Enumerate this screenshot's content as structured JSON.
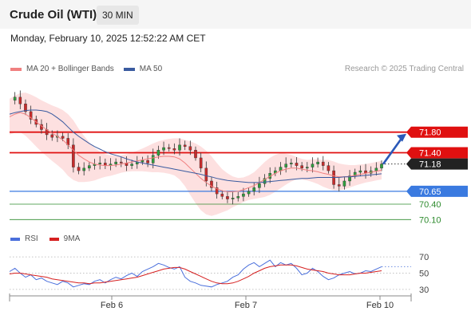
{
  "header": {
    "title": "Crude Oil (WTI)",
    "timeframe": "30 MIN",
    "datetime": "Monday, February 10, 2025 12:52:22 AM CET"
  },
  "legend": {
    "ma20_label": "MA 20 + Bollinger Bands",
    "ma50_label": "MA 50",
    "credit": "Research © 2025 Trading Central",
    "colors": {
      "ma20": "#f08080",
      "ma50": "#3a5ba0",
      "band_fill": "#fde0e0"
    }
  },
  "rsi_legend": {
    "rsi_label": "RSI",
    "ma9_label": "9MA",
    "colors": {
      "rsi": "#4a6fdc",
      "ma9": "#d62020"
    }
  },
  "chart_data": [
    {
      "type": "candlestick",
      "title": "Crude Oil (WTI)",
      "timeframe": "30 MIN",
      "ylim": [
        69.95,
        72.85
      ],
      "x_tick_labels": [
        "Feb 6",
        "Feb 7",
        "Feb 10"
      ],
      "levels": [
        {
          "label": "71.80",
          "value": 71.8,
          "kind": "resistance",
          "color": "#e01010",
          "badge": true
        },
        {
          "label": "71.40",
          "value": 71.4,
          "kind": "resistance",
          "color": "#e01010",
          "badge": true
        },
        {
          "label": "71.18",
          "value": 71.18,
          "kind": "last-price",
          "color": "#222222",
          "badge": true
        },
        {
          "label": "70.65",
          "value": 70.65,
          "kind": "pivot",
          "color": "#3a7ae0",
          "badge": true
        },
        {
          "label": "70.40",
          "value": 70.4,
          "kind": "support",
          "color": "#2e8b2e",
          "badge": false
        },
        {
          "label": "70.10",
          "value": 70.1,
          "kind": "support",
          "color": "#2e8b2e",
          "badge": false
        }
      ],
      "close_path": [
        72.42,
        72.48,
        72.35,
        72.2,
        72.05,
        71.95,
        71.85,
        71.75,
        71.7,
        71.72,
        71.68,
        71.55,
        71.12,
        71.05,
        71.1,
        71.15,
        71.18,
        71.2,
        71.15,
        71.18,
        71.22,
        71.2,
        71.15,
        71.18,
        71.22,
        71.25,
        71.2,
        71.35,
        71.45,
        71.5,
        71.48,
        71.45,
        71.55,
        71.52,
        71.45,
        71.3,
        71.1,
        70.85,
        70.72,
        70.6,
        70.55,
        70.5,
        70.52,
        70.55,
        70.6,
        70.65,
        70.72,
        70.8,
        70.9,
        71.0,
        71.05,
        71.12,
        71.18,
        71.2,
        71.15,
        71.1,
        71.12,
        71.18,
        71.22,
        71.15,
        71.05,
        70.78,
        70.75,
        70.85,
        70.95,
        71.02,
        71.05,
        71.0,
        71.05,
        71.1,
        71.18
      ],
      "ma20": [
        72.1,
        72.15,
        72.18,
        72.15,
        72.08,
        72.0,
        71.92,
        71.85,
        71.78,
        71.72,
        71.65,
        71.55,
        71.45,
        71.35,
        71.28,
        71.22,
        71.18,
        71.16,
        71.15,
        71.15,
        71.16,
        71.18,
        71.2,
        71.22,
        71.24,
        71.26,
        71.28,
        71.3,
        71.32,
        71.33,
        71.33,
        71.32,
        71.28,
        71.2,
        71.1,
        71.0,
        70.9,
        70.82,
        70.75,
        70.7,
        70.66,
        70.64,
        70.64,
        70.65,
        70.68,
        70.72,
        70.76,
        70.82,
        70.88,
        70.94,
        71.0,
        71.05,
        71.08,
        71.1,
        71.1,
        71.08,
        71.06,
        71.05,
        71.03,
        71.0,
        70.98,
        70.95,
        70.93,
        70.93,
        70.94,
        70.96,
        70.98,
        71.0,
        71.02,
        71.04,
        71.06
      ],
      "ma50": [
        72.15,
        72.18,
        72.2,
        72.22,
        72.23,
        72.23,
        72.22,
        72.2,
        72.15,
        72.08,
        72.0,
        71.9,
        71.8,
        71.72,
        71.65,
        71.58,
        71.52,
        71.47,
        71.42,
        71.38,
        71.35,
        71.32,
        71.28,
        71.25,
        71.22,
        71.2,
        71.18,
        71.16,
        71.14,
        71.12,
        71.1,
        71.08,
        71.06,
        71.04,
        71.02,
        71.0,
        70.98,
        70.95,
        70.93,
        70.9,
        70.88,
        70.86,
        70.85,
        70.84,
        70.83,
        70.82,
        70.82,
        70.82,
        70.83,
        70.84,
        70.85,
        70.86,
        70.87,
        70.88,
        70.89,
        70.9,
        70.9,
        70.91,
        70.92,
        70.92,
        70.92,
        70.92,
        70.92,
        70.93,
        70.93,
        70.94,
        70.95,
        70.96,
        70.97,
        70.98,
        70.99
      ],
      "band_width": [
        0.35,
        0.36,
        0.38,
        0.42,
        0.45,
        0.48,
        0.5,
        0.52,
        0.54,
        0.56,
        0.58,
        0.6,
        0.58,
        0.52,
        0.45,
        0.38,
        0.32,
        0.26,
        0.22,
        0.2,
        0.18,
        0.17,
        0.17,
        0.18,
        0.2,
        0.22,
        0.25,
        0.28,
        0.3,
        0.32,
        0.34,
        0.36,
        0.4,
        0.45,
        0.52,
        0.58,
        0.62,
        0.62,
        0.58,
        0.5,
        0.42,
        0.36,
        0.3,
        0.26,
        0.24,
        0.24,
        0.26,
        0.3,
        0.34,
        0.36,
        0.36,
        0.34,
        0.3,
        0.26,
        0.22,
        0.2,
        0.2,
        0.22,
        0.24,
        0.26,
        0.28,
        0.28,
        0.26,
        0.24,
        0.22,
        0.2,
        0.19,
        0.18,
        0.18,
        0.18,
        0.18
      ],
      "forecast": {
        "from": 71.18,
        "to": 71.8,
        "color": "#2a58b8"
      }
    },
    {
      "type": "line",
      "title": "RSI",
      "ylim": [
        25,
        78
      ],
      "y_ticks": [
        30,
        50,
        70
      ],
      "series": [
        {
          "name": "RSI",
          "color": "#4a6fdc",
          "values": [
            52,
            56,
            50,
            45,
            48,
            42,
            44,
            40,
            38,
            36,
            40,
            38,
            33,
            35,
            37,
            36,
            40,
            42,
            38,
            42,
            45,
            43,
            47,
            50,
            46,
            52,
            55,
            58,
            62,
            60,
            57,
            55,
            58,
            45,
            40,
            38,
            35,
            34,
            33,
            36,
            38,
            40,
            45,
            48,
            55,
            60,
            63,
            58,
            62,
            66,
            58,
            63,
            60,
            62,
            56,
            48,
            50,
            56,
            52,
            46,
            42,
            44,
            48,
            50,
            52,
            49,
            50,
            53,
            52,
            55,
            58
          ]
        },
        {
          "name": "9MA",
          "color": "#d62020",
          "values": [
            49,
            50,
            50,
            49,
            48,
            47,
            46,
            45,
            43,
            42,
            41,
            40,
            39,
            38,
            38,
            37,
            38,
            38,
            39,
            40,
            41,
            42,
            43,
            44,
            45,
            47,
            49,
            51,
            53,
            55,
            56,
            57,
            57,
            55,
            52,
            49,
            46,
            43,
            40,
            38,
            37,
            37,
            38,
            40,
            43,
            46,
            50,
            53,
            56,
            58,
            59,
            60,
            60,
            60,
            59,
            57,
            55,
            54,
            53,
            52,
            50,
            49,
            48,
            48,
            48,
            49,
            50,
            50,
            51,
            52,
            53
          ]
        }
      ]
    }
  ]
}
